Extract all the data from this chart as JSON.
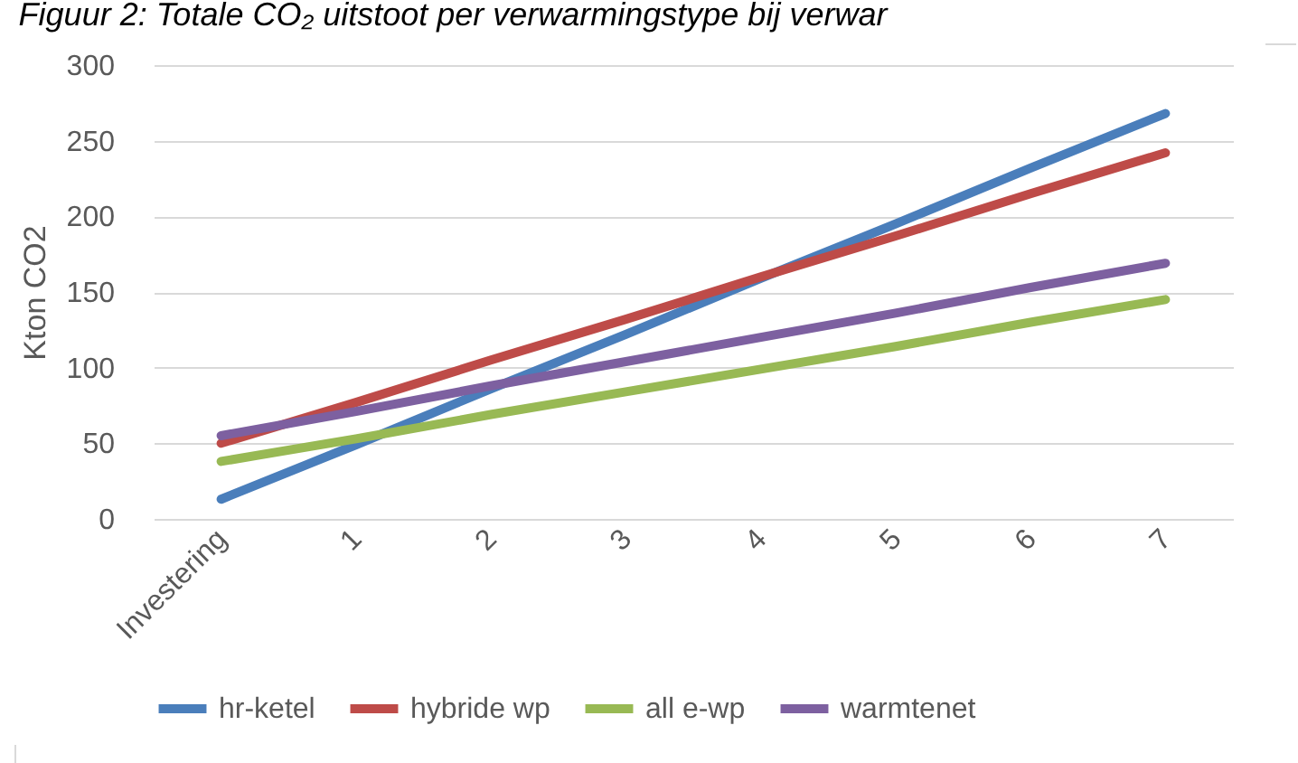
{
  "chart_data": {
    "type": "line",
    "title": "Figuur 2: Totale CO₂ uitstoot per verwarmingstype bij verwar",
    "ylabel": "Kton CO2",
    "categories": [
      "Investering",
      "1",
      "2",
      "3",
      "4",
      "5",
      "6",
      "7"
    ],
    "series": [
      {
        "name": "hr-ketel",
        "color": "#4a7ebb",
        "values": [
          13,
          49,
          86,
          122,
          159,
          195,
          232,
          268
        ]
      },
      {
        "name": "hybride wp",
        "color": "#be4b48",
        "values": [
          50,
          77,
          105,
          132,
          160,
          187,
          215,
          242
        ]
      },
      {
        "name": "all e-wp",
        "color": "#98b954",
        "values": [
          38,
          53,
          69,
          84,
          99,
          114,
          130,
          145
        ]
      },
      {
        "name": "warmtenet",
        "color": "#7d60a0",
        "values": [
          55,
          71,
          88,
          104,
          120,
          136,
          153,
          169
        ]
      }
    ],
    "ylim": [
      0,
      300
    ],
    "yticks": [
      0,
      50,
      100,
      150,
      200,
      250,
      300
    ],
    "grid": "y",
    "legend": "bottom",
    "marker": "none",
    "line_style": "solid"
  }
}
